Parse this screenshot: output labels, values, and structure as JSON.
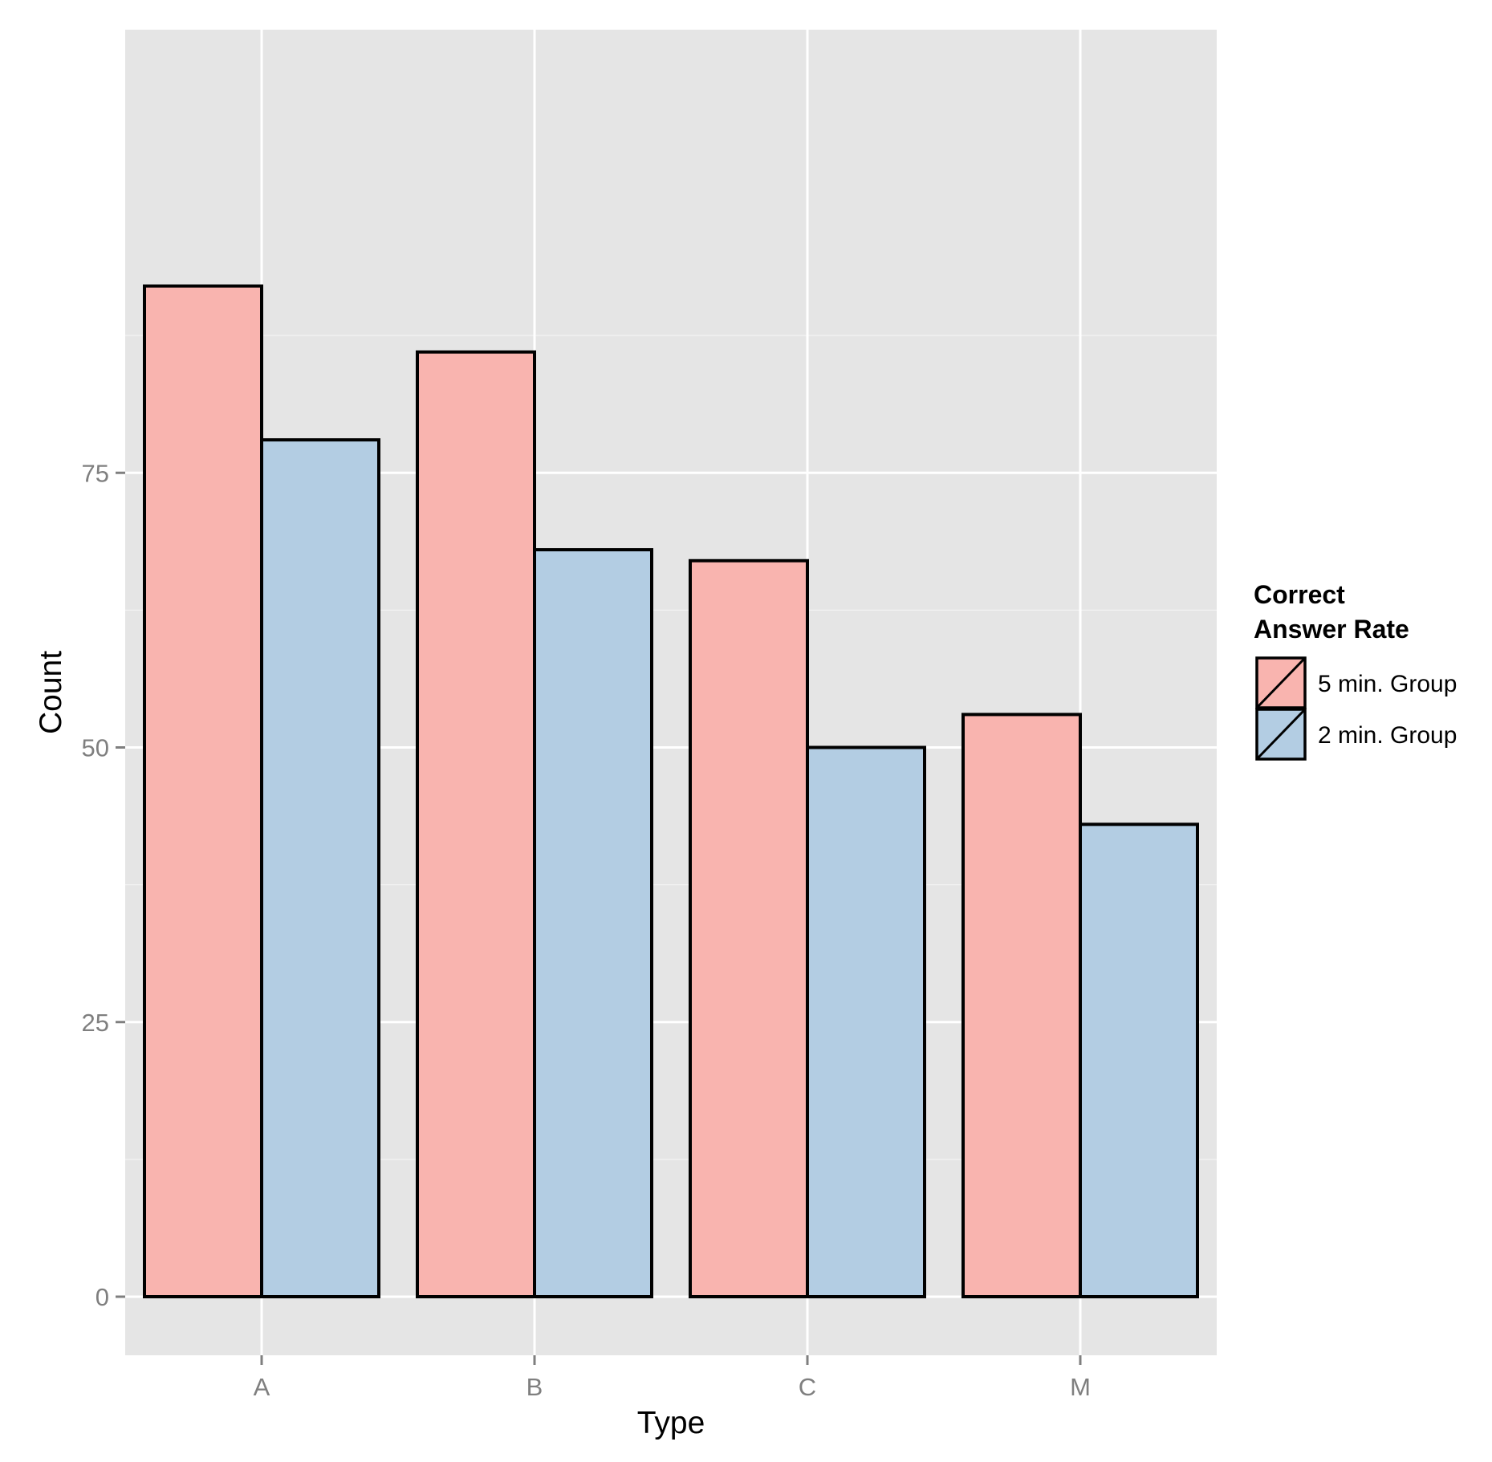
{
  "chart_data": {
    "type": "bar",
    "categories": [
      "A",
      "B",
      "C",
      "M"
    ],
    "series": [
      {
        "name": "5 min. Group",
        "color": "#f9b4af",
        "values": [
          92,
          86,
          67,
          53
        ]
      },
      {
        "name": "2 min. Group",
        "color": "#b3cde3",
        "values": [
          78,
          68,
          50,
          43
        ]
      }
    ],
    "title": "",
    "xlabel": "Type",
    "ylabel": "Count",
    "ylim": [
      -4.6,
      96.7
    ],
    "yticks": [
      0,
      25,
      50,
      75
    ],
    "yticklabels": [
      "0",
      "25",
      "50",
      "75"
    ],
    "grid": true,
    "legend": {
      "title_lines": [
        "Correct",
        "Answer Rate"
      ],
      "position": "right"
    },
    "colors": {
      "panel_background": "#e5e5e5",
      "gridline": "#ffffff",
      "bar_outline": "#000000"
    }
  }
}
